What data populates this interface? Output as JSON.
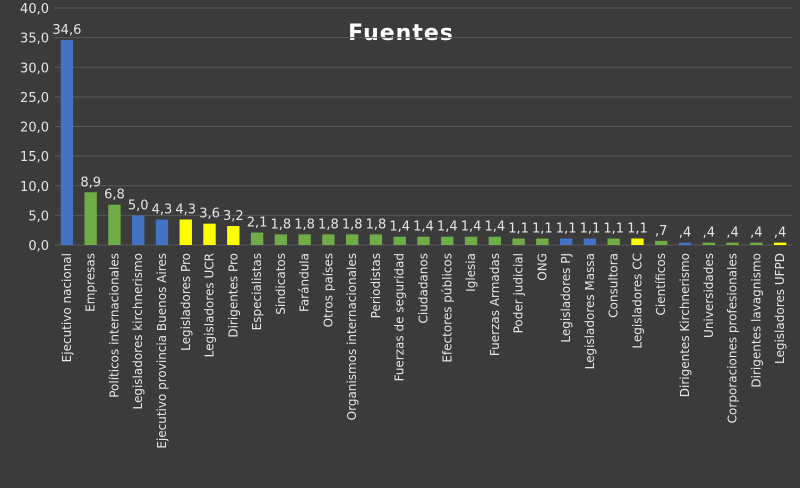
{
  "chart_data": {
    "type": "bar",
    "title": "Fuentes",
    "xlabel": "",
    "ylabel": "",
    "ylim": [
      0,
      40
    ],
    "yticks": [
      "0,0",
      "5,0",
      "10,0",
      "15,0",
      "20,0",
      "25,0",
      "30,0",
      "35,0",
      "40,0"
    ],
    "grid": true,
    "legend": "none",
    "categories": [
      "Ejecutivo nacional",
      "Empresas",
      "Políticos internacionales",
      "Legisladores kirchnerismo",
      "Ejecutivo provincia Buenos Aires",
      "Legisladores Pro",
      "Legisladores UCR",
      "Dirigentes Pro",
      "Especialistas",
      "Sindicatos",
      "Farándula",
      "Otros países",
      "Organismos internacionales",
      "Periodistas",
      "Fuerzas de seguridad",
      "Ciudadanos",
      "Efectores públicos",
      "Iglesia",
      "Fuerzas Armadas",
      "Poder judicial",
      "ONG",
      "Legisladores PJ",
      "Legisladores Massa",
      "Consultora",
      "Legisladores CC",
      "Científicos",
      "Dirigentes Kirchnerismo",
      "Universidades",
      "Corporaciones profesionales",
      "Dirigentes lavagnismo",
      "Legisladores UFPD"
    ],
    "values": [
      34.6,
      8.9,
      6.8,
      5.0,
      4.3,
      4.3,
      3.6,
      3.2,
      2.1,
      1.8,
      1.8,
      1.8,
      1.8,
      1.8,
      1.4,
      1.4,
      1.4,
      1.4,
      1.4,
      1.1,
      1.1,
      1.1,
      1.1,
      1.1,
      1.1,
      0.7,
      0.4,
      0.4,
      0.4,
      0.4,
      0.4
    ],
    "value_labels": [
      "34,6",
      "8,9",
      "6,8",
      "5,0",
      "4,3",
      "4,3",
      "3,6",
      "3,2",
      "2,1",
      "1,8",
      "1,8",
      "1,8",
      "1,8",
      "1,8",
      "1,4",
      "1,4",
      "1,4",
      "1,4",
      "1,4",
      "1,1",
      "1,1",
      "1,1",
      "1,1",
      "1,1",
      "1,1",
      ",7",
      ",4",
      ",4",
      ",4",
      ",4",
      ",4"
    ],
    "bar_colors": [
      "blue",
      "green",
      "green",
      "blue",
      "blue",
      "yellow",
      "yellow",
      "yellow",
      "green",
      "green",
      "green",
      "green",
      "green",
      "green",
      "green",
      "green",
      "green",
      "green",
      "green",
      "green",
      "green",
      "blue",
      "blue",
      "green",
      "yellow",
      "green",
      "blue",
      "green",
      "green",
      "green",
      "yellow"
    ],
    "palette": {
      "blue": "#4472c4",
      "green": "#70ad47",
      "yellow": "#ffff00"
    },
    "colors": {
      "background": "#3b3b3b",
      "grid": "#595959",
      "text": "#e6e6e6"
    }
  }
}
